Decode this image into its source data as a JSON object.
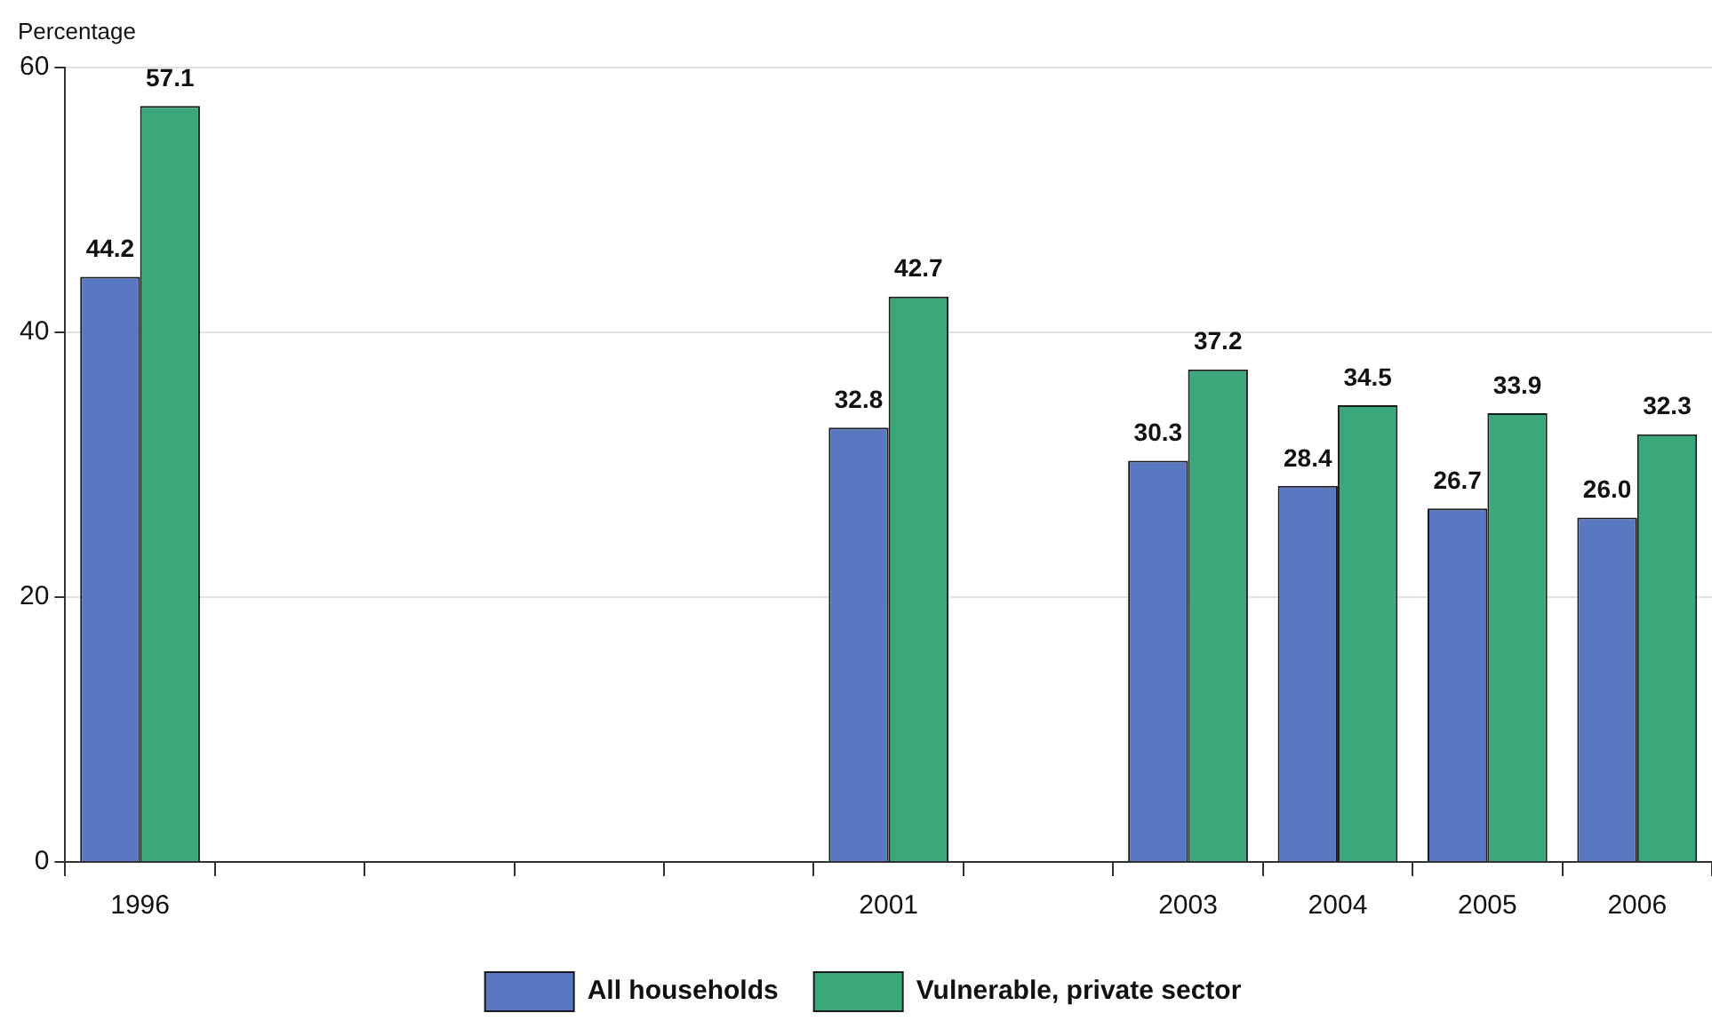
{
  "chart_data": {
    "type": "bar",
    "ylabel": "Percentage",
    "categories": [
      "1996",
      null,
      null,
      null,
      null,
      "2001",
      null,
      "2003",
      "2004",
      "2005",
      "2006"
    ],
    "series": [
      {
        "name": "All households",
        "color": "#5a78c2",
        "values": [
          44.2,
          null,
          null,
          null,
          null,
          32.8,
          null,
          30.3,
          28.4,
          26.7,
          26.0
        ],
        "value_labels": [
          "44.2",
          null,
          null,
          null,
          null,
          "32.8",
          null,
          "30.3",
          "28.4",
          "26.7",
          "26.0"
        ]
      },
      {
        "name": "Vulnerable, private sector",
        "color": "#3aa87a",
        "values": [
          57.1,
          null,
          null,
          null,
          null,
          42.7,
          null,
          37.2,
          34.5,
          33.9,
          32.3
        ],
        "value_labels": [
          "57.1",
          null,
          null,
          null,
          null,
          "42.7",
          null,
          "37.2",
          "34.5",
          "33.9",
          "32.3"
        ]
      }
    ],
    "ylim": [
      0,
      60
    ],
    "yticks": [
      0,
      20,
      40,
      60
    ],
    "grid": "y",
    "legend": "bottom"
  }
}
